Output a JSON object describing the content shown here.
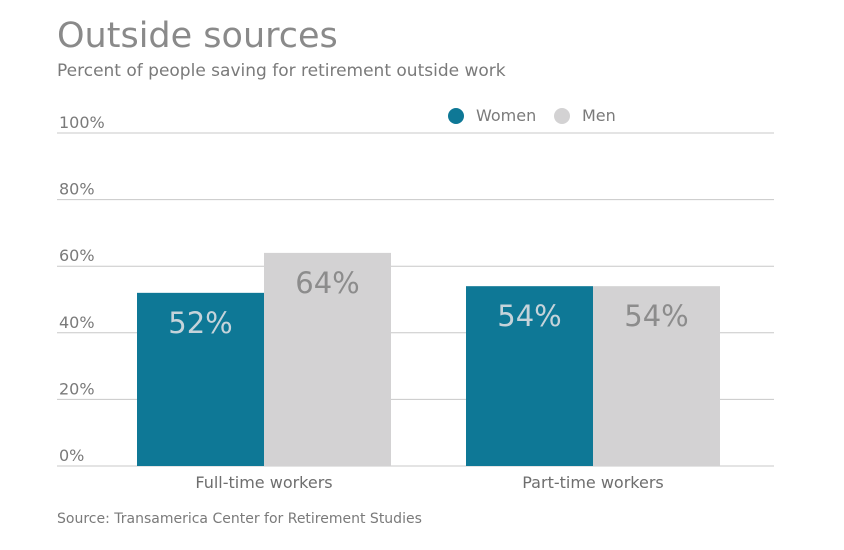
{
  "title": "Outside sources",
  "subtitle": "Percent of people saving for retirement outside work",
  "source": "Source: Transamerica Center for Retirement Studies",
  "chart_data": {
    "type": "bar",
    "categories": [
      "Full-time workers",
      "Part-time workers"
    ],
    "series": [
      {
        "name": "Women",
        "values": [
          52,
          54
        ],
        "labels": [
          "52%",
          "54%"
        ],
        "color": "#0e7896",
        "label_color": "#c5d3da"
      },
      {
        "name": "Men",
        "values": [
          64,
          54
        ],
        "labels": [
          "64%",
          "54%"
        ],
        "color": "#d3d2d3",
        "label_color": "#8c8c8c"
      }
    ],
    "y_ticks": [
      0,
      20,
      40,
      60,
      80,
      100
    ],
    "y_tick_labels": [
      "0%",
      "20%",
      "40%",
      "60%",
      "80%",
      "100%"
    ],
    "ylim": [
      0,
      100
    ],
    "grid": true,
    "legend_position": "top-right",
    "grid_color": "#c8c8c8"
  }
}
